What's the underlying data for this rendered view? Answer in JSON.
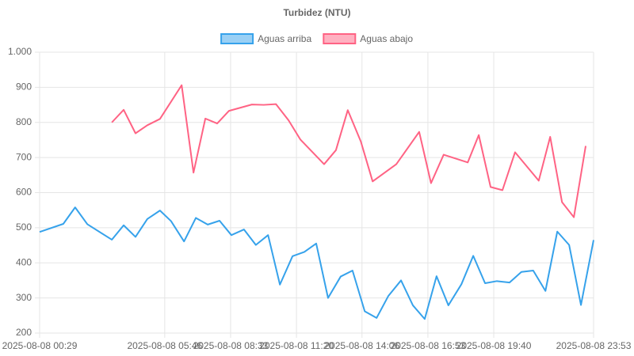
{
  "chart_data": {
    "type": "line",
    "title": "Turbidez (NTU)",
    "xlim": [
      "2025-08-08 00:29",
      "2025-08-08 23:53"
    ],
    "xticks": [
      "2025-08-08 00:29",
      "2025-08-08 05:46",
      "2025-08-08 08:33",
      "2025-08-08 11:20",
      "2025-08-08 14:06",
      "2025-08-08 16:53",
      "2025-08-08 19:40",
      "2025-08-08 23:53"
    ],
    "ylim": [
      200,
      1000
    ],
    "yticks": [
      200,
      300,
      400,
      500,
      600,
      700,
      800,
      900,
      {
        "value": 1000,
        "label": "1.000"
      }
    ],
    "grid": true,
    "legend": "top",
    "series": [
      {
        "name": "Aguas arriba",
        "color": "#36a2eb",
        "x": [
          "2025-08-08 00:29",
          "2025-08-08 01:29",
          "2025-08-08 01:59",
          "2025-08-08 02:30",
          "2025-08-08 03:32",
          "2025-08-08 04:02",
          "2025-08-08 04:32",
          "2025-08-08 05:02",
          "2025-08-08 05:34",
          "2025-08-08 06:02",
          "2025-08-08 06:35",
          "2025-08-08 07:05",
          "2025-08-08 07:35",
          "2025-08-08 08:05",
          "2025-08-08 08:35",
          "2025-08-08 09:07",
          "2025-08-08 09:37",
          "2025-08-08 10:08",
          "2025-08-08 10:38",
          "2025-08-08 11:10",
          "2025-08-08 11:40",
          "2025-08-08 12:10",
          "2025-08-08 12:40",
          "2025-08-08 13:12",
          "2025-08-08 13:42",
          "2025-08-08 14:13",
          "2025-08-08 14:43",
          "2025-08-08 15:13",
          "2025-08-08 15:45",
          "2025-08-08 16:15",
          "2025-08-08 16:45",
          "2025-08-08 17:15",
          "2025-08-08 17:45",
          "2025-08-08 18:18",
          "2025-08-08 18:48",
          "2025-08-08 19:18",
          "2025-08-08 19:48",
          "2025-08-08 20:20",
          "2025-08-08 20:50",
          "2025-08-08 21:20",
          "2025-08-08 21:51",
          "2025-08-08 22:21",
          "2025-08-08 22:51",
          "2025-08-08 23:21",
          "2025-08-08 23:53"
        ],
        "values": [
          488,
          511,
          558,
          510,
          466,
          507,
          474,
          525,
          549,
          519,
          461,
          528,
          509,
          520,
          479,
          495,
          451,
          479,
          338,
          419,
          431,
          455,
          300,
          361,
          378,
          262,
          243,
          306,
          350,
          279,
          240,
          362,
          279,
          339,
          420,
          342,
          348,
          344,
          374,
          378,
          320,
          489,
          451,
          280,
          465
        ]
      },
      {
        "name": "Aguas abajo",
        "color": "#ff6384",
        "x": [
          "2025-08-08 03:32",
          "2025-08-08 04:02",
          "2025-08-08 04:32",
          "2025-08-08 05:02",
          "2025-08-08 05:34",
          "2025-08-08 06:29",
          "2025-08-08 06:59",
          "2025-08-08 07:29",
          "2025-08-08 07:59",
          "2025-08-08 08:29",
          "2025-08-08 09:27",
          "2025-08-08 09:57",
          "2025-08-08 10:28",
          "2025-08-08 11:00",
          "2025-08-08 11:30",
          "2025-08-08 12:30",
          "2025-08-08 13:00",
          "2025-08-08 13:30",
          "2025-08-08 14:03",
          "2025-08-08 14:33",
          "2025-08-08 15:33",
          "2025-08-08 16:31",
          "2025-08-08 17:01",
          "2025-08-08 17:33",
          "2025-08-08 18:34",
          "2025-08-08 19:02",
          "2025-08-08 19:32",
          "2025-08-08 20:02",
          "2025-08-08 20:34",
          "2025-08-08 21:34",
          "2025-08-08 22:03",
          "2025-08-08 22:33",
          "2025-08-08 23:03",
          "2025-08-08 23:33"
        ],
        "values": [
          800,
          836,
          769,
          792,
          810,
          906,
          657,
          811,
          797,
          833,
          851,
          850,
          852,
          806,
          751,
          681,
          721,
          835,
          746,
          632,
          681,
          773,
          627,
          708,
          686,
          764,
          616,
          607,
          715,
          634,
          759,
          573,
          530,
          733
        ]
      }
    ]
  }
}
